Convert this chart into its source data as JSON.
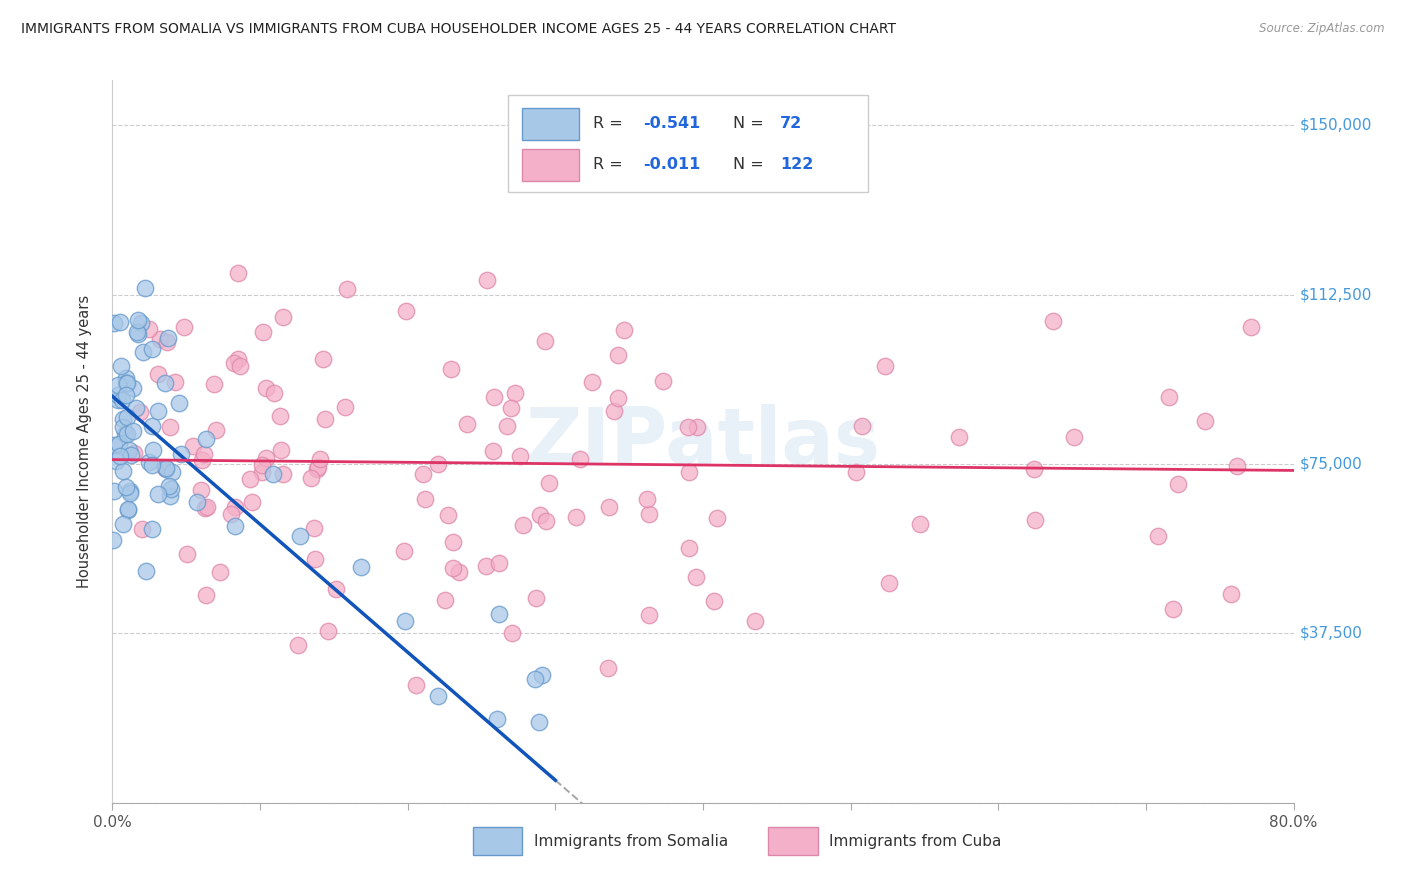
{
  "title": "IMMIGRANTS FROM SOMALIA VS IMMIGRANTS FROM CUBA HOUSEHOLDER INCOME AGES 25 - 44 YEARS CORRELATION CHART",
  "source": "Source: ZipAtlas.com",
  "ylabel": "Householder Income Ages 25 - 44 years",
  "yticks": [
    0,
    37500,
    75000,
    112500,
    150000
  ],
  "ytick_labels": [
    "",
    "$37,500",
    "$75,000",
    "$112,500",
    "$150,000"
  ],
  "xlim": [
    0.0,
    80.0
  ],
  "ylim": [
    0,
    160000
  ],
  "somalia_R": -0.541,
  "somalia_N": 72,
  "cuba_R": -0.011,
  "cuba_N": 122,
  "somalia_color": "#a8c8e8",
  "somalia_edge": "#6699cc",
  "cuba_color": "#f4b0c8",
  "cuba_edge": "#dd88aa",
  "somalia_line_color": "#1155bb",
  "cuba_line_color": "#dd3366",
  "watermark": "ZIPatlas",
  "background_color": "#ffffff",
  "somalia_line_x0": 0.0,
  "somalia_line_y0": 90000,
  "somalia_line_x1": 30.0,
  "somalia_line_y1": 5000,
  "somalia_dash_x0": 30.0,
  "somalia_dash_x1": 48.0,
  "cuba_line_x0": 0.0,
  "cuba_line_y0": 76000,
  "cuba_line_x1": 80.0,
  "cuba_line_y1": 73600
}
